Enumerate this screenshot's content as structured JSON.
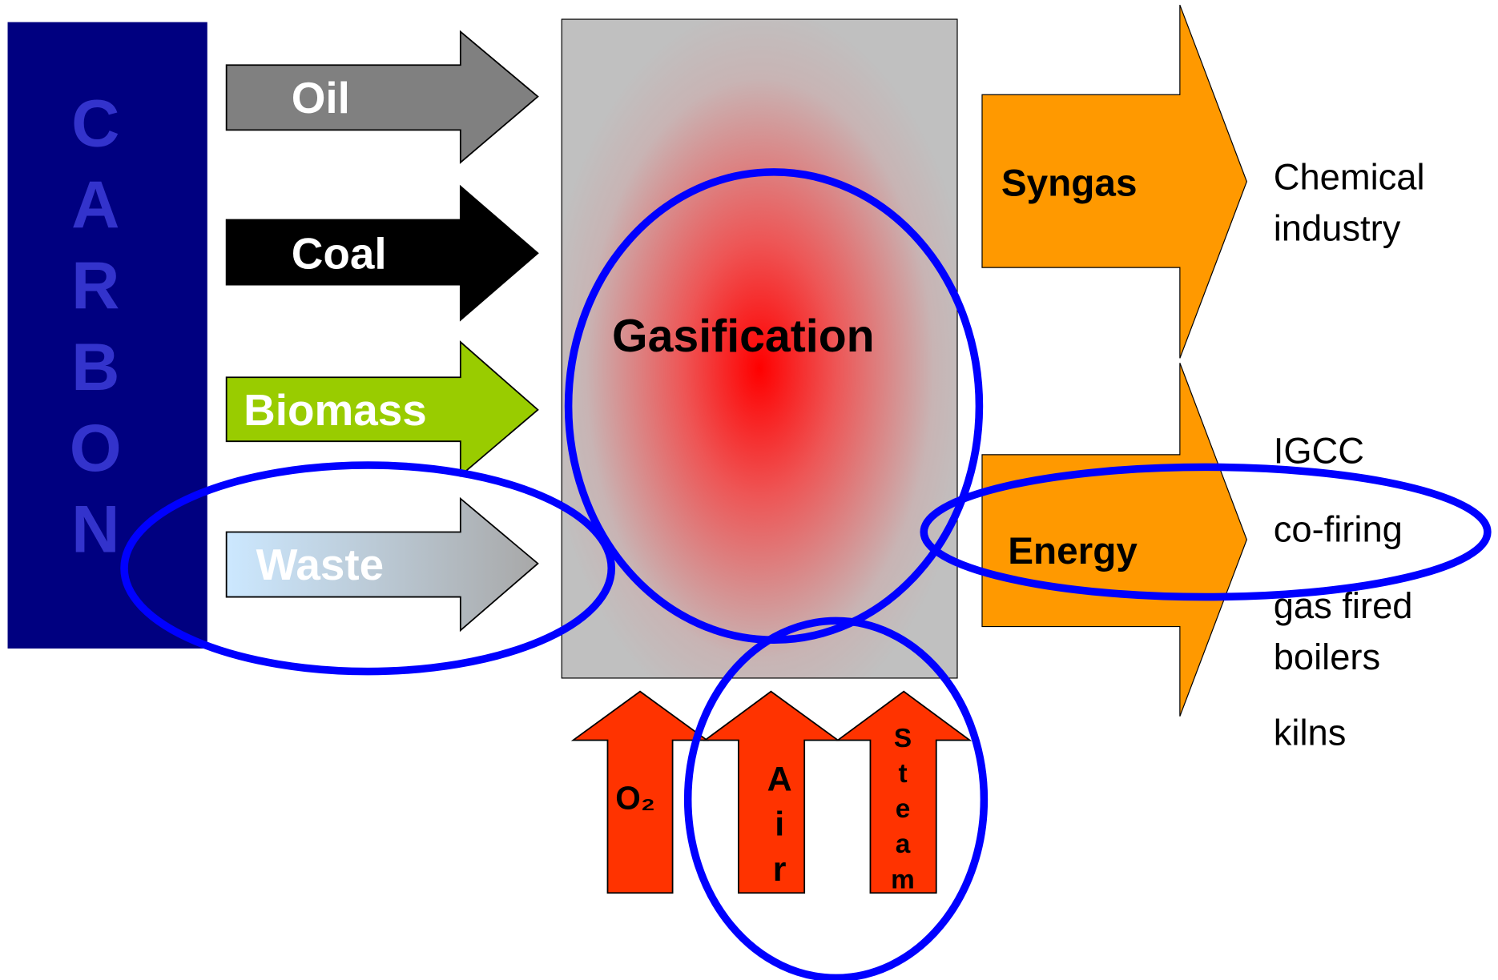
{
  "carbon": "CARBON",
  "feedstocks": [
    "Oil",
    "Coal",
    "Biomass",
    "Waste"
  ],
  "process": "Gasification",
  "agents": [
    "O₂",
    "Air",
    "Steam"
  ],
  "outputs": [
    {
      "label": "Syngas",
      "uses": [
        [
          "Chemical",
          "industry"
        ]
      ]
    },
    {
      "label": "Energy",
      "uses": [
        [
          "IGCC"
        ],
        [
          "co-firing"
        ],
        [
          "gas fired",
          "boilers"
        ],
        [
          "kilns"
        ]
      ]
    }
  ]
}
